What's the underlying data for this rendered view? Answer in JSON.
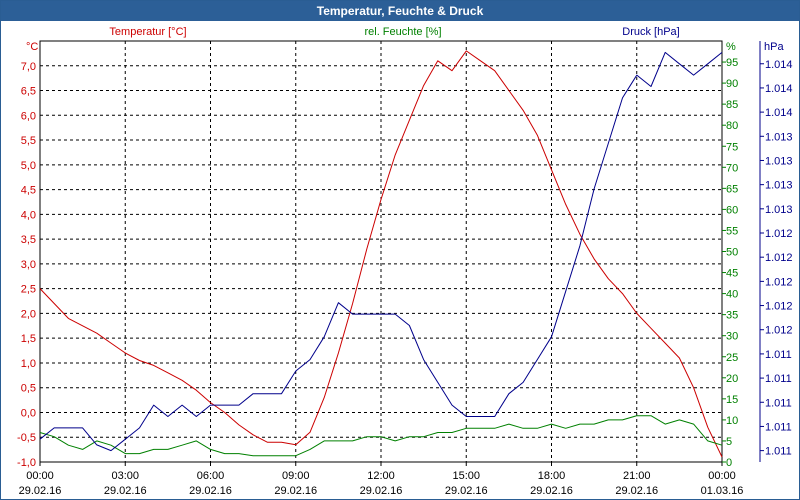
{
  "window": {
    "title": "Temperatur, Feuchte & Druck"
  },
  "chart_data": {
    "type": "line",
    "title": "Temperatur, Feuchte & Druck",
    "colors": {
      "temperature": "#cc0000",
      "humidity": "#008000",
      "pressure": "#00008b",
      "grid": "#000000",
      "titlebar": "#2c5f97"
    },
    "x_ticks": [
      {
        "time": "00:00",
        "date": "29.02.16"
      },
      {
        "time": "03:00",
        "date": "29.02.16"
      },
      {
        "time": "06:00",
        "date": "29.02.16"
      },
      {
        "time": "09:00",
        "date": "29.02.16"
      },
      {
        "time": "12:00",
        "date": "29.02.16"
      },
      {
        "time": "15:00",
        "date": "29.02.16"
      },
      {
        "time": "18:00",
        "date": "29.02.16"
      },
      {
        "time": "21:00",
        "date": "29.02.16"
      },
      {
        "time": "00:00",
        "date": "01.03.16"
      }
    ],
    "xlim": [
      0,
      24
    ],
    "axes": {
      "temperature": {
        "label": "Temperatur [°C]",
        "unit": "°C",
        "ylim": [
          -1.0,
          7.5
        ],
        "ticks": [
          "-1,0",
          "-0,5",
          "0,0",
          "0,5",
          "1,0",
          "1,5",
          "2,0",
          "2,5",
          "3,0",
          "3,5",
          "4,0",
          "4,5",
          "5,0",
          "5,5",
          "6,0",
          "6,5",
          "7,0"
        ]
      },
      "humidity": {
        "label": "rel. Feuchte [%]",
        "unit": "%",
        "ylim": [
          0,
          100
        ],
        "ticks": [
          "0",
          "5",
          "10",
          "15",
          "20",
          "25",
          "30",
          "35",
          "40",
          "45",
          "50",
          "55",
          "60",
          "65",
          "70",
          "75",
          "80",
          "85",
          "90",
          "95"
        ]
      },
      "pressure": {
        "label": "Druck [hPa]",
        "unit": "hPa",
        "ylim": [
          1010.9,
          1014.6
        ],
        "ticks": [
          "1.011",
          "1.011",
          "1.011",
          "1.011",
          "1.011",
          "1.012",
          "1.012",
          "1.012",
          "1.012",
          "1.012",
          "1.013",
          "1.013",
          "1.013",
          "1.013",
          "1.014",
          "1.014",
          "1.014"
        ]
      }
    },
    "series": [
      {
        "name": "Temperatur [°C]",
        "axis": "temperature",
        "x": [
          0,
          0.5,
          1,
          1.5,
          2,
          2.5,
          3,
          3.5,
          4,
          4.5,
          5,
          5.5,
          6,
          6.5,
          7,
          7.5,
          8,
          8.5,
          9,
          9.5,
          10,
          10.5,
          11,
          11.5,
          12,
          12.5,
          13,
          13.5,
          14,
          14.5,
          15,
          15.5,
          16,
          16.5,
          17,
          17.5,
          18,
          18.5,
          19,
          19.5,
          20,
          20.5,
          21,
          21.5,
          22,
          22.5,
          23,
          23.5,
          24
        ],
        "values": [
          2.5,
          2.2,
          1.9,
          1.75,
          1.6,
          1.4,
          1.2,
          1.05,
          0.95,
          0.8,
          0.65,
          0.45,
          0.2,
          0.0,
          -0.25,
          -0.45,
          -0.6,
          -0.6,
          -0.65,
          -0.4,
          0.3,
          1.2,
          2.2,
          3.3,
          4.3,
          5.2,
          5.9,
          6.6,
          7.1,
          6.9,
          7.3,
          7.1,
          6.9,
          6.5,
          6.1,
          5.6,
          4.9,
          4.2,
          3.6,
          3.1,
          2.7,
          2.4,
          2.0,
          1.7,
          1.4,
          1.1,
          0.5,
          -0.3,
          -0.9
        ]
      },
      {
        "name": "rel. Feuchte [%]",
        "axis": "humidity",
        "x": [
          0,
          0.5,
          1,
          1.5,
          2,
          2.5,
          3,
          3.5,
          4,
          4.5,
          5,
          5.5,
          6,
          6.5,
          7,
          7.5,
          8,
          8.5,
          9,
          9.5,
          10,
          10.5,
          11,
          11.5,
          12,
          12.5,
          13,
          13.5,
          14,
          14.5,
          15,
          15.5,
          16,
          16.5,
          17,
          17.5,
          18,
          18.5,
          19,
          19.5,
          20,
          20.5,
          21,
          21.5,
          22,
          22.5,
          23,
          23.5,
          24
        ],
        "values": [
          7,
          6,
          4,
          3,
          5,
          4,
          2,
          2,
          3,
          3,
          4,
          5,
          3,
          2,
          2,
          1.5,
          1.5,
          1.5,
          1.5,
          3,
          5,
          5,
          5,
          6,
          6,
          5,
          6,
          6,
          7,
          7,
          8,
          8,
          8,
          9,
          8,
          8,
          9,
          8,
          9,
          9,
          10,
          10,
          11,
          11,
          9,
          10,
          9,
          5,
          4
        ]
      },
      {
        "name": "Druck [hPa]",
        "axis": "pressure",
        "x": [
          0,
          0.5,
          1,
          1.5,
          2,
          2.5,
          3,
          3.5,
          4,
          4.5,
          5,
          5.5,
          6,
          6.5,
          7,
          7.5,
          8,
          8.5,
          9,
          9.5,
          10,
          10.5,
          11,
          11.5,
          12,
          12.5,
          13,
          13.5,
          14,
          14.5,
          15,
          15.5,
          16,
          16.5,
          17,
          17.5,
          18,
          18.5,
          19,
          19.5,
          20,
          20.5,
          21,
          21.5,
          22,
          22.5,
          23,
          23.5,
          24
        ],
        "values": [
          1011.1,
          1011.2,
          1011.2,
          1011.2,
          1011.05,
          1011.0,
          1011.1,
          1011.2,
          1011.4,
          1011.3,
          1011.4,
          1011.3,
          1011.4,
          1011.4,
          1011.4,
          1011.5,
          1011.5,
          1011.5,
          1011.7,
          1011.8,
          1012.0,
          1012.3,
          1012.2,
          1012.2,
          1012.2,
          1012.2,
          1012.1,
          1011.8,
          1011.6,
          1011.4,
          1011.3,
          1011.3,
          1011.3,
          1011.5,
          1011.6,
          1011.8,
          1012.0,
          1012.4,
          1012.8,
          1013.3,
          1013.7,
          1014.1,
          1014.3,
          1014.2,
          1014.5,
          1014.4,
          1014.3,
          1014.4,
          1014.5
        ]
      }
    ]
  }
}
